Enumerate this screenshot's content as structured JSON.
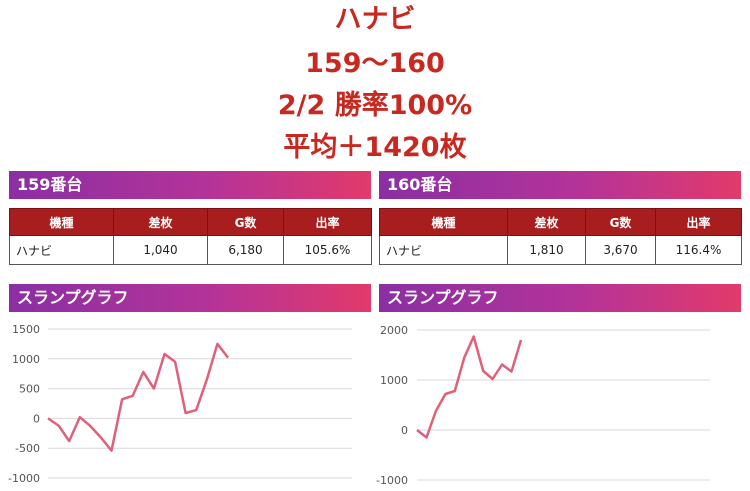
{
  "headline": {
    "machine": "ハナビ",
    "range": "159～160",
    "record": "2/2 勝率100%",
    "average": "平均＋1420枚"
  },
  "colors": {
    "headline_red": "#c8281f",
    "band_gradient": [
      "#8a2fa3",
      "#b43399",
      "#e23a6a"
    ],
    "table_header": "#a81d1d",
    "graph_line": "#e0607a"
  },
  "table_headers": [
    "機種",
    "差枚",
    "G数",
    "出率"
  ],
  "machines": [
    {
      "title": "159番台",
      "row": {
        "name": "ハナビ",
        "diff": "1,040",
        "games": "6,180",
        "rate": "105.6%"
      },
      "graph_title": "スランプグラフ"
    },
    {
      "title": "160番台",
      "row": {
        "name": "ハナビ",
        "diff": "1,810",
        "games": "3,670",
        "rate": "116.4%"
      },
      "graph_title": "スランプグラフ"
    }
  ],
  "chart_data": [
    {
      "type": "line",
      "title": "スランプグラフ",
      "ylim": [
        -1000,
        1500
      ],
      "yticks": [
        1500,
        1000,
        500,
        0,
        -500,
        -1000
      ],
      "ytick_labels": [
        "1500",
        "1000",
        "500",
        "0",
        "-500",
        "-1000"
      ],
      "grid": true,
      "series": [
        {
          "values": [
            0,
            -120,
            -380,
            20,
            -130,
            -320,
            -540,
            320,
            380,
            780,
            500,
            1080,
            950,
            90,
            140,
            650,
            1250,
            1020
          ]
        }
      ]
    },
    {
      "type": "line",
      "title": "スランプグラフ",
      "ylim": [
        -1000,
        2000
      ],
      "yticks": [
        2000,
        1000,
        0,
        -1000
      ],
      "ytick_labels": [
        "2000",
        "1000",
        "0",
        "-1000"
      ],
      "grid": true,
      "series": [
        {
          "values": [
            0,
            -150,
            380,
            720,
            780,
            1450,
            1870,
            1180,
            1020,
            1310,
            1170,
            1800
          ]
        }
      ]
    }
  ]
}
